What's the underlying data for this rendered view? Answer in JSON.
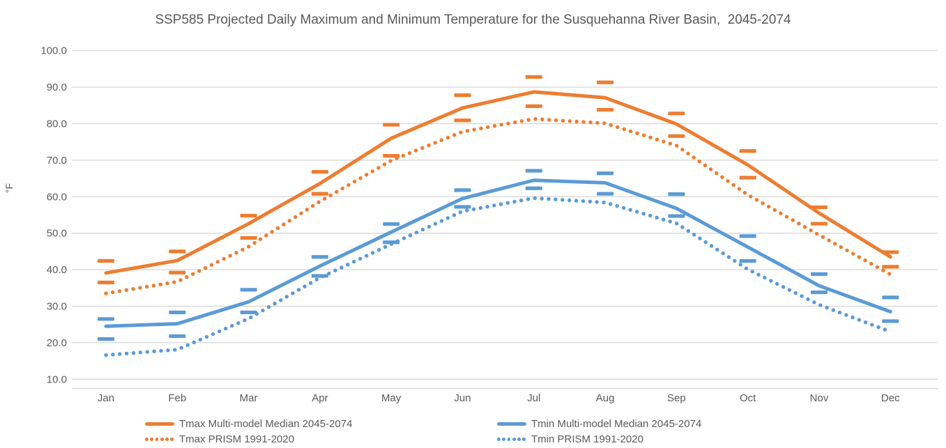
{
  "page": {
    "title": "SSP585 Projected Daily Maximum and Minimum Temperature for the Susquehanna River Basin,  2045-2074",
    "background": "#ffffff"
  },
  "colors": {
    "tmax_orange": "#ED7D31",
    "tmin_blue": "#5B9BD5",
    "gridline": "#D9D9D9",
    "axis_text": "#595959",
    "title_text": "#595959"
  },
  "axes": {
    "y_label": "°F",
    "y_tick_labels": [
      "100.0",
      "90.0",
      "80.0",
      "70.0",
      "60.0",
      "50.0",
      "40.0",
      "30.0",
      "20.0",
      "10.0"
    ],
    "x_tick_labels": [
      "Jan",
      "Feb",
      "Mar",
      "Apr",
      "May",
      "Jun",
      "Jul",
      "Aug",
      "Sep",
      "Oct",
      "Nov",
      "Dec"
    ]
  },
  "chart_data": {
    "type": "line",
    "title": "SSP585 Projected Daily Maximum and Minimum Temperature for the Susquehanna River Basin,  2045-2074",
    "xlabel": "",
    "ylabel": "°F",
    "ylim": [
      10,
      100
    ],
    "ytick_step": 10,
    "grid": "horizontal",
    "legend_position": "bottom",
    "categories": [
      "Jan",
      "Feb",
      "Mar",
      "Apr",
      "May",
      "Jun",
      "Jul",
      "Aug",
      "Sep",
      "Oct",
      "Nov",
      "Dec"
    ],
    "series": [
      {
        "name": "Tmax Multi-model Median 2045-2074",
        "style": "solid",
        "color": "#ED7D31",
        "in_legend": true,
        "values": [
          39.1,
          42.5,
          52.6,
          63.6,
          76.0,
          84.3,
          88.7,
          87.1,
          79.9,
          68.7,
          55.5,
          43.5
        ]
      },
      {
        "name": "Tmax PRISM 1991-2020",
        "style": "dotted",
        "color": "#ED7D31",
        "in_legend": true,
        "values": [
          33.5,
          36.7,
          46.3,
          58.7,
          69.9,
          77.8,
          81.3,
          80.1,
          74.0,
          60.5,
          49.5,
          38.7
        ]
      },
      {
        "name": "Tmin Multi-model Median 2045-2074",
        "style": "solid",
        "color": "#5B9BD5",
        "in_legend": true,
        "values": [
          24.5,
          25.2,
          31.2,
          41.0,
          50.3,
          59.5,
          64.5,
          63.8,
          56.8,
          46.2,
          35.6,
          28.5
        ]
      },
      {
        "name": "Tmin PRISM 1991-2020",
        "style": "dotted",
        "color": "#5B9BD5",
        "in_legend": true,
        "values": [
          16.6,
          18.1,
          26.6,
          37.8,
          47.0,
          56.0,
          59.6,
          58.4,
          52.7,
          40.1,
          30.4,
          23.0
        ]
      },
      {
        "name": "Tmax upper range dash markers (unlabeled)",
        "style": "dash-markers",
        "color": "#ED7D31",
        "in_legend": false,
        "values": [
          42.4,
          45.0,
          54.8,
          66.8,
          79.7,
          87.8,
          92.8,
          91.3,
          82.8,
          72.5,
          57.1,
          44.8
        ]
      },
      {
        "name": "Tmax lower range dash markers (unlabeled)",
        "style": "dash-markers",
        "color": "#ED7D31",
        "in_legend": false,
        "values": [
          36.5,
          39.2,
          48.7,
          60.8,
          71.2,
          80.9,
          84.8,
          83.8,
          76.6,
          65.2,
          52.6,
          40.8
        ]
      },
      {
        "name": "Tmin upper range dash markers (unlabeled)",
        "style": "dash-markers",
        "color": "#5B9BD5",
        "in_legend": false,
        "values": [
          26.5,
          28.3,
          34.5,
          43.5,
          52.5,
          61.8,
          67.1,
          66.4,
          60.7,
          49.2,
          38.8,
          32.4
        ]
      },
      {
        "name": "Tmin lower range dash markers (unlabeled)",
        "style": "dash-markers",
        "color": "#5B9BD5",
        "in_legend": false,
        "values": [
          21.0,
          21.8,
          28.3,
          38.3,
          47.5,
          57.2,
          62.3,
          60.8,
          54.7,
          42.4,
          33.8,
          25.9
        ]
      }
    ]
  },
  "legend": {
    "items": [
      {
        "label": "Tmax Multi-model Median 2045-2074",
        "swatch": "solid-line",
        "color": "#ED7D31"
      },
      {
        "label": "Tmax PRISM 1991-2020",
        "swatch": "dotted-line",
        "color": "#ED7D31"
      },
      {
        "label": "Tmin Multi-model Median 2045-2074",
        "swatch": "solid-line",
        "color": "#5B9BD5"
      },
      {
        "label": "Tmin PRISM 1991-2020",
        "swatch": "dotted-line",
        "color": "#5B9BD5"
      }
    ]
  }
}
